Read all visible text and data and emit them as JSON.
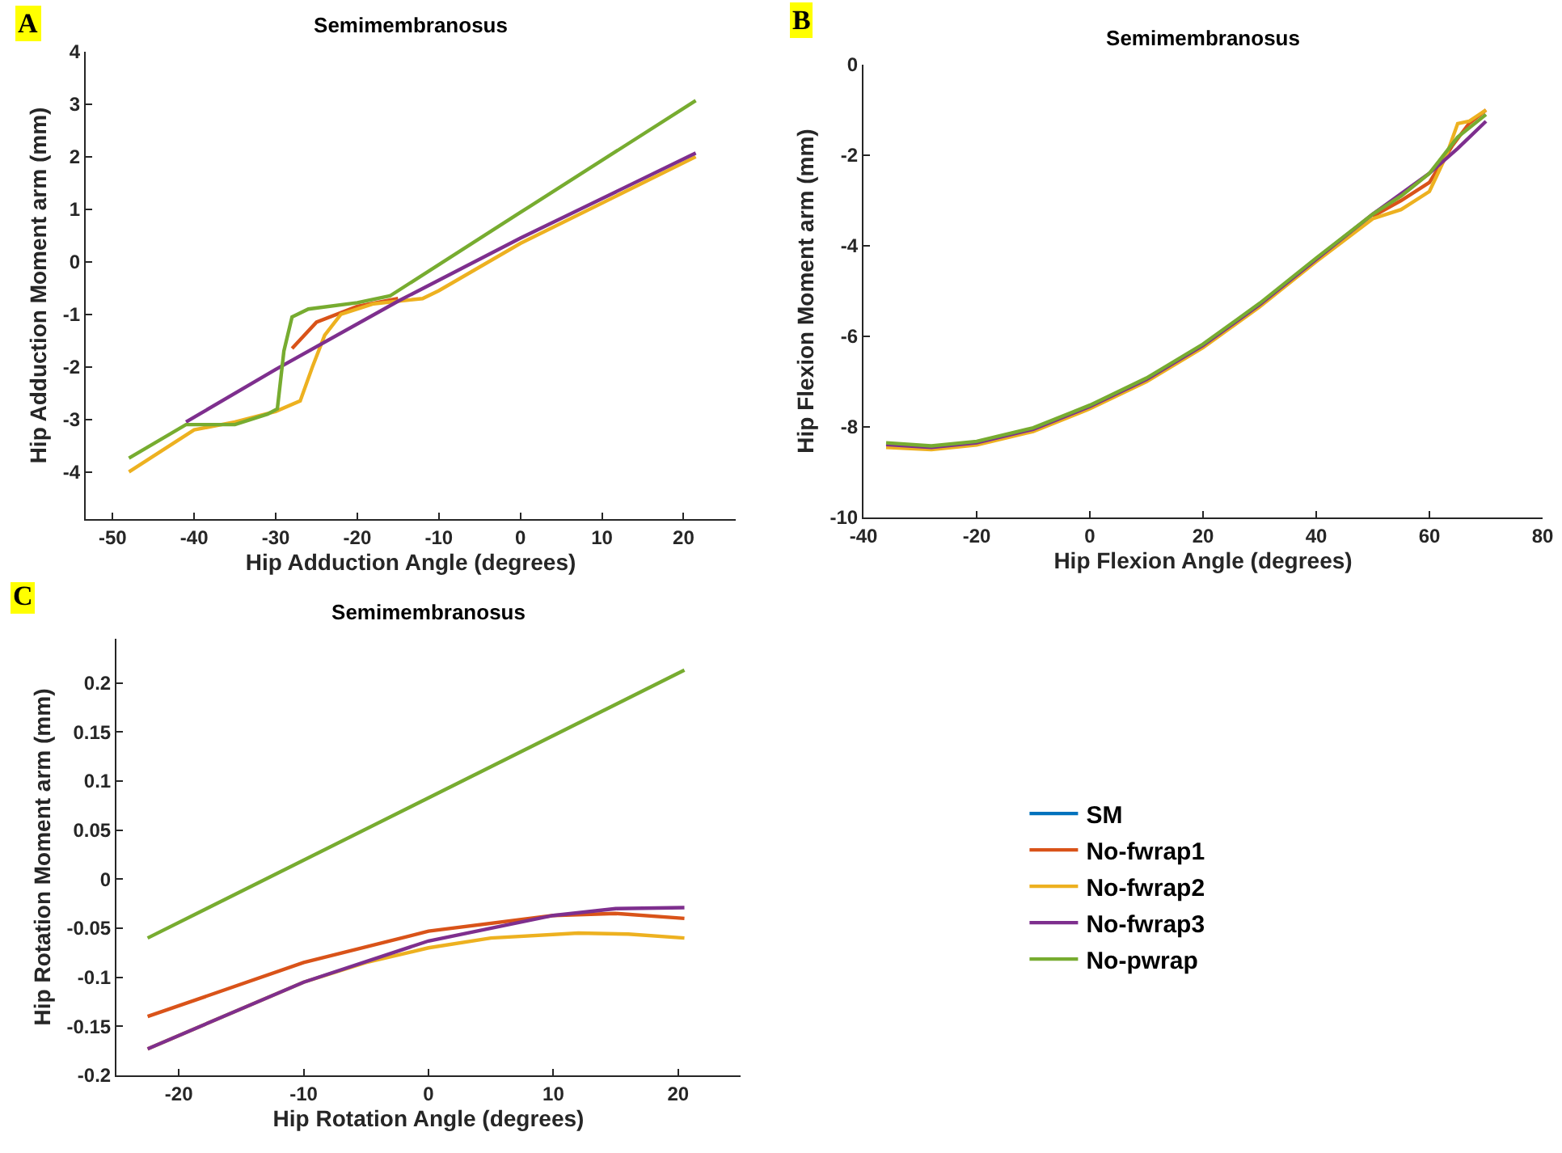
{
  "chart_data": [
    {
      "type": "line",
      "title": "Semimembranosus",
      "xlabel": "Hip Adduction Angle (degrees)",
      "ylabel": "Hip Adduction Moment arm (mm)",
      "annotations": [
        "A"
      ],
      "xlim": [
        -53.3,
        26.4
      ],
      "xticks": [
        -50,
        -40,
        -30,
        -20,
        -10,
        0,
        10,
        20
      ],
      "ylim": [
        -4.9,
        4
      ],
      "yticks": [
        -4,
        -3,
        -2,
        -1,
        0,
        1,
        2,
        3,
        4
      ],
      "grid": false,
      "legend": false,
      "line_style": "solid",
      "marker": "none",
      "series": [
        {
          "color": "#d95319",
          "x": [
            -28,
            -25,
            -20,
            -15
          ],
          "values": [
            -1.65,
            -1.15,
            -0.85,
            -0.7
          ]
        },
        {
          "color": "#edb120",
          "x": [
            -48,
            -40,
            -35,
            -30,
            -27,
            -25.5,
            -24,
            -22,
            -18,
            -12,
            -10,
            0,
            21.5
          ],
          "values": [
            -4.0,
            -3.2,
            -3.05,
            -2.85,
            -2.65,
            -2.0,
            -1.4,
            -1.0,
            -0.8,
            -0.7,
            -0.55,
            0.35,
            2.0
          ]
        },
        {
          "color": "#7e2f8e",
          "x": [
            -41,
            -30,
            -15,
            0,
            21.5
          ],
          "values": [
            -3.05,
            -2.05,
            -0.75,
            0.45,
            2.07
          ]
        },
        {
          "color": "#77ac30",
          "x": [
            -48,
            -41,
            -35,
            -31,
            -29.8,
            -29,
            -28,
            -26,
            -20,
            -16,
            0,
            21.5
          ],
          "values": [
            -3.74,
            -3.1,
            -3.1,
            -2.9,
            -2.8,
            -1.7,
            -1.05,
            -0.9,
            -0.78,
            -0.65,
            0.94,
            3.07
          ]
        }
      ]
    },
    {
      "type": "line",
      "title": "Semimembranosus",
      "xlabel": "Hip Flexion Angle (degrees)",
      "ylabel": "Hip Flexion Moment arm (mm)",
      "annotations": [
        "B"
      ],
      "xlim": [
        -40,
        80
      ],
      "xticks": [
        -40,
        -20,
        0,
        20,
        40,
        60,
        80
      ],
      "ylim": [
        -10,
        0
      ],
      "yticks": [
        -10,
        -8,
        -6,
        -4,
        -2,
        0
      ],
      "grid": false,
      "legend": false,
      "line_style": "solid",
      "marker": "none",
      "series": [
        {
          "color": "#d95319",
          "x": [
            50,
            55,
            60,
            64,
            67,
            70
          ],
          "values": [
            -3.35,
            -3.0,
            -2.6,
            -1.8,
            -1.3,
            -1.0
          ]
        },
        {
          "color": "#edb120",
          "x": [
            -36,
            -28,
            -20,
            -10,
            0,
            10,
            20,
            30,
            40,
            50,
            55,
            60,
            63,
            65,
            67,
            70
          ],
          "values": [
            -8.45,
            -8.5,
            -8.4,
            -8.1,
            -7.6,
            -7.0,
            -6.25,
            -5.35,
            -4.35,
            -3.4,
            -3.2,
            -2.8,
            -2.0,
            -1.3,
            -1.25,
            -1.0
          ]
        },
        {
          "color": "#7e2f8e",
          "x": [
            -36,
            -28,
            -20,
            -10,
            0,
            10,
            20,
            30,
            40,
            50,
            55,
            60,
            65,
            70
          ],
          "values": [
            -8.39,
            -8.45,
            -8.35,
            -8.05,
            -7.55,
            -6.95,
            -6.2,
            -5.3,
            -4.3,
            -3.3,
            -2.85,
            -2.4,
            -1.85,
            -1.25
          ]
        },
        {
          "color": "#77ac30",
          "x": [
            -36,
            -28,
            -20,
            -10,
            0,
            10,
            20,
            30,
            40,
            50,
            55,
            60,
            65,
            70
          ],
          "values": [
            -8.35,
            -8.42,
            -8.32,
            -8.02,
            -7.52,
            -6.92,
            -6.17,
            -5.27,
            -4.27,
            -3.3,
            -2.9,
            -2.4,
            -1.6,
            -1.1
          ]
        }
      ]
    },
    {
      "type": "line",
      "title": "Semimembranosus",
      "xlabel": "Hip Rotation Angle (degrees)",
      "ylabel": "Hip Rotation Moment arm (mm)",
      "annotations": [
        "C"
      ],
      "xlim": [
        -25,
        25
      ],
      "xticks": [
        -20,
        -10,
        0,
        10,
        20
      ],
      "ylim": [
        -0.2,
        0.245
      ],
      "yticks": [
        -0.2,
        -0.15,
        -0.1,
        -0.05,
        0,
        0.05,
        0.1,
        0.15,
        0.2
      ],
      "grid": false,
      "legend": "right",
      "line_style": "solid",
      "marker": "none",
      "series": [
        {
          "name": "SM",
          "color": "#0072bd"
        },
        {
          "name": "No-fwrap1",
          "color": "#d95319",
          "x": [
            -22.5,
            -10,
            0,
            10,
            15,
            20.5
          ],
          "values": [
            -0.14,
            -0.085,
            -0.053,
            -0.037,
            -0.035,
            -0.04
          ]
        },
        {
          "name": "No-fwrap2",
          "color": "#edb120",
          "x": [
            -22.5,
            -10,
            -5,
            0,
            5,
            12,
            16,
            20.5
          ],
          "values": [
            -0.173,
            -0.105,
            -0.085,
            -0.07,
            -0.06,
            -0.055,
            -0.056,
            -0.06
          ]
        },
        {
          "name": "No-fwrap3",
          "color": "#7e2f8e",
          "x": [
            -22.5,
            -10,
            0,
            10,
            15,
            20.5
          ],
          "values": [
            -0.173,
            -0.105,
            -0.063,
            -0.037,
            -0.03,
            -0.029
          ]
        },
        {
          "name": "No-pwrap",
          "color": "#77ac30",
          "x": [
            -22.5,
            20.5
          ],
          "values": [
            -0.06,
            0.213
          ]
        }
      ]
    }
  ]
}
